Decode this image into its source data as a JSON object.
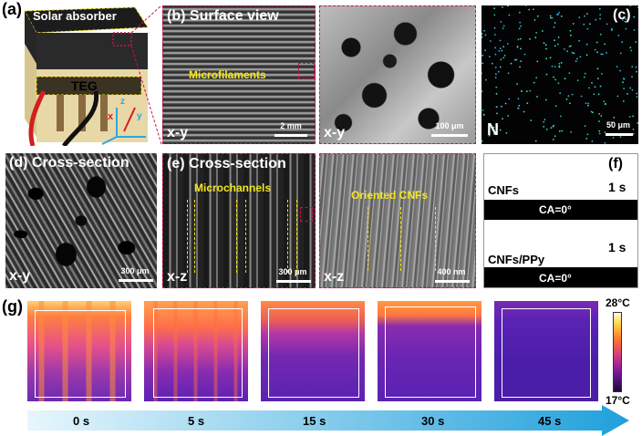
{
  "panels": {
    "a": {
      "label": "(a)",
      "solar_absorber": "Solar absorber",
      "teg": "TEG",
      "axis_x": "x",
      "axis_y": "y",
      "axis_z": "z"
    },
    "b": {
      "label": "(b)",
      "title": "Surface view",
      "annotation": "Microfilaments",
      "axis": "x-y",
      "scale": "2 mm"
    },
    "b2": {
      "axis": "x-y",
      "scale": "100 μm"
    },
    "c": {
      "label": "(c)",
      "element": "N",
      "scale": "50 μm"
    },
    "d": {
      "label": "(d)",
      "title": "Cross-section",
      "axis": "x-y",
      "scale": "300 μm"
    },
    "e": {
      "label": "(e)",
      "title": "Cross-section",
      "annotation": "Microchannels",
      "axis": "x-z",
      "scale": "300 μm"
    },
    "e2": {
      "annotation": "Oriented CNFs",
      "axis": "x-z",
      "scale": "400 nm"
    },
    "f": {
      "label": "(f)",
      "sample1": "CNFs",
      "time1": "1 s",
      "ca1": "CA=0°",
      "sample2": "CNFs/PPy",
      "time2": "1 s",
      "ca2": "CA=0°"
    },
    "g": {
      "label": "(g)",
      "colorbar_max": "28°C",
      "colorbar_min": "17°C",
      "times": [
        "0 s",
        "5 s",
        "15 s",
        "30 s",
        "45 s"
      ]
    }
  },
  "colors": {
    "annotation_yellow": "#f5e61c",
    "link_red": "#d0104c",
    "arrow_blue": "#2aa8e0"
  }
}
